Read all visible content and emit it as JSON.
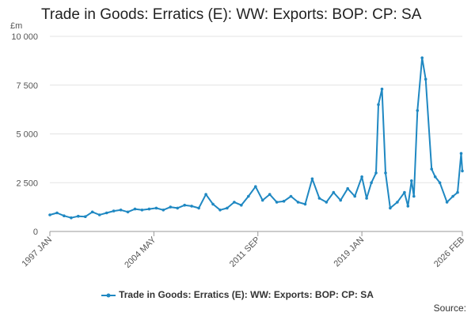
{
  "page": {
    "title": "Trade in Goods: Erratics (E): WW: Exports: BOP: CP: SA",
    "source_label": "Source:"
  },
  "chart_data": {
    "type": "line",
    "title": "Trade in Goods: Erratics (E): WW: Exports: BOP: CP: SA",
    "ylabel": "£m",
    "ylim": [
      0,
      10000
    ],
    "yticks": [
      0,
      2500,
      5000,
      7500,
      10000
    ],
    "ytick_labels": [
      "0",
      "2 500",
      "5 000",
      "7 500",
      "10 000"
    ],
    "xticks": [
      "1997 JAN",
      "2004 MAY",
      "2011 SEP",
      "2019 JAN",
      "2026 FEB"
    ],
    "grid": true,
    "legend_position": "bottom",
    "color": "#1f88c2",
    "series": [
      {
        "name": "Trade in Goods: Erratics (E): WW: Exports: BOP: CP: SA",
        "x": [
          "1997 JAN",
          "1997 JUL",
          "1998 JAN",
          "1998 JUL",
          "1999 JAN",
          "1999 JUL",
          "2000 JAN",
          "2000 JUL",
          "2001 JAN",
          "2001 JUL",
          "2002 JAN",
          "2002 JUL",
          "2003 JAN",
          "2003 JUL",
          "2004 JAN",
          "2004 JUL",
          "2005 JAN",
          "2005 JUL",
          "2006 JAN",
          "2006 JUL",
          "2007 JAN",
          "2007 JUL",
          "2008 JAN",
          "2008 JUL",
          "2009 JAN",
          "2009 JUL",
          "2010 JAN",
          "2010 JUL",
          "2011 JAN",
          "2011 JUL",
          "2012 JAN",
          "2012 JUL",
          "2013 JAN",
          "2013 JUL",
          "2014 JAN",
          "2014 JUL",
          "2015 JAN",
          "2015 JUL",
          "2016 JAN",
          "2016 JUL",
          "2017 JAN",
          "2017 JUL",
          "2018 JAN",
          "2018 JUL",
          "2019 JAN",
          "2019 MAY",
          "2019 SEP",
          "2020 JAN",
          "2020 MAR",
          "2020 JUN",
          "2020 SEP",
          "2021 JAN",
          "2021 JUL",
          "2022 JAN",
          "2022 APR",
          "2022 JUL",
          "2022 SEP",
          "2022 DEC",
          "2023 APR",
          "2023 JUL",
          "2023 DEC",
          "2024 MAR",
          "2024 JUL",
          "2025 JAN",
          "2025 JUN",
          "2025 OCT",
          "2026 JAN",
          "2026 FEB"
        ],
        "values": [
          850,
          950,
          800,
          700,
          780,
          760,
          1000,
          850,
          950,
          1050,
          1100,
          1000,
          1150,
          1100,
          1150,
          1200,
          1100,
          1250,
          1200,
          1350,
          1300,
          1200,
          1900,
          1400,
          1100,
          1200,
          1500,
          1350,
          1800,
          2300,
          1600,
          1900,
          1500,
          1550,
          1800,
          1500,
          1400,
          2700,
          1700,
          1500,
          2000,
          1600,
          2200,
          1800,
          2800,
          1700,
          2500,
          3000,
          6500,
          7300,
          3000,
          1200,
          1500,
          2000,
          1300,
          2600,
          1800,
          6200,
          8900,
          7800,
          3200,
          2800,
          2500,
          1500,
          1800,
          2000,
          4000,
          3100
        ]
      }
    ]
  }
}
